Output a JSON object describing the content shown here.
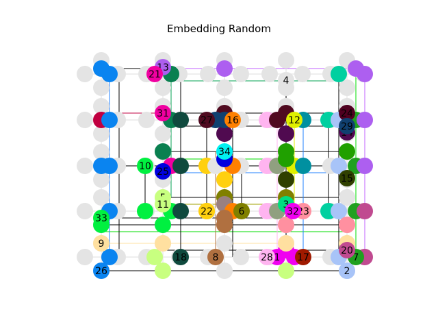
{
  "title": "Embedding Random",
  "colors": {
    "grid": "#e4e4e4",
    "blue": "#0a84f0",
    "olive": "#808000",
    "purple": "#ad5ff0"
  },
  "nodes": [
    {
      "id": "1",
      "label": "1",
      "color": "#f000f0"
    },
    {
      "id": "2",
      "label": "2",
      "color": "#a8c4f8"
    },
    {
      "id": "3",
      "label": "3",
      "color": "#00dd80"
    },
    {
      "id": "4",
      "label": "4",
      "color": "#e4e4e4"
    },
    {
      "id": "5",
      "label": "5",
      "color": "#c8ff80"
    },
    {
      "id": "6",
      "label": "6",
      "color": "#808000"
    },
    {
      "id": "7",
      "label": "7",
      "color": "#20a020"
    },
    {
      "id": "8",
      "label": "8",
      "color": "#b07040"
    },
    {
      "id": "9",
      "label": "9",
      "color": "#ffe0a0"
    },
    {
      "id": "10",
      "label": "10",
      "color": "#00f040"
    },
    {
      "id": "11",
      "label": "11",
      "color": "#c8ff80"
    },
    {
      "id": "12",
      "label": "12",
      "color": "#e0f000"
    },
    {
      "id": "13",
      "label": "13",
      "color": "#ad5ff0"
    },
    {
      "id": "14",
      "label": "14",
      "color": "#500a50"
    },
    {
      "id": "15",
      "label": "15",
      "color": "#304000"
    },
    {
      "id": "16",
      "label": "16",
      "color": "#ff8000"
    },
    {
      "id": "17",
      "label": "17",
      "color": "#a01a00"
    },
    {
      "id": "18",
      "label": "18",
      "color": "#104a3e"
    },
    {
      "id": "20",
      "label": "20",
      "color": "#c04a90"
    },
    {
      "id": "21",
      "label": "21",
      "color": "#f000a0"
    },
    {
      "id": "22",
      "label": "22",
      "color": "#ffd010"
    },
    {
      "id": "23",
      "label": "23",
      "color": "#ff90a0"
    },
    {
      "id": "24",
      "label": "24",
      "color": "#500020"
    },
    {
      "id": "25",
      "label": "25",
      "color": "#0000e0"
    },
    {
      "id": "26",
      "label": "26",
      "color": "#0a84f0"
    },
    {
      "id": "27",
      "label": "27",
      "color": "#500a20"
    },
    {
      "id": "28",
      "label": "28",
      "color": "#ffb4f0"
    },
    {
      "id": "29",
      "label": "29",
      "color": "#104070"
    },
    {
      "id": "31",
      "label": "31",
      "color": "#f000a0"
    },
    {
      "id": "32",
      "label": "32",
      "color": "#f000f0"
    },
    {
      "id": "33",
      "label": "33",
      "color": "#00f040"
    },
    {
      "id": "34",
      "label": "34",
      "color": "#00f0f0"
    }
  ]
}
